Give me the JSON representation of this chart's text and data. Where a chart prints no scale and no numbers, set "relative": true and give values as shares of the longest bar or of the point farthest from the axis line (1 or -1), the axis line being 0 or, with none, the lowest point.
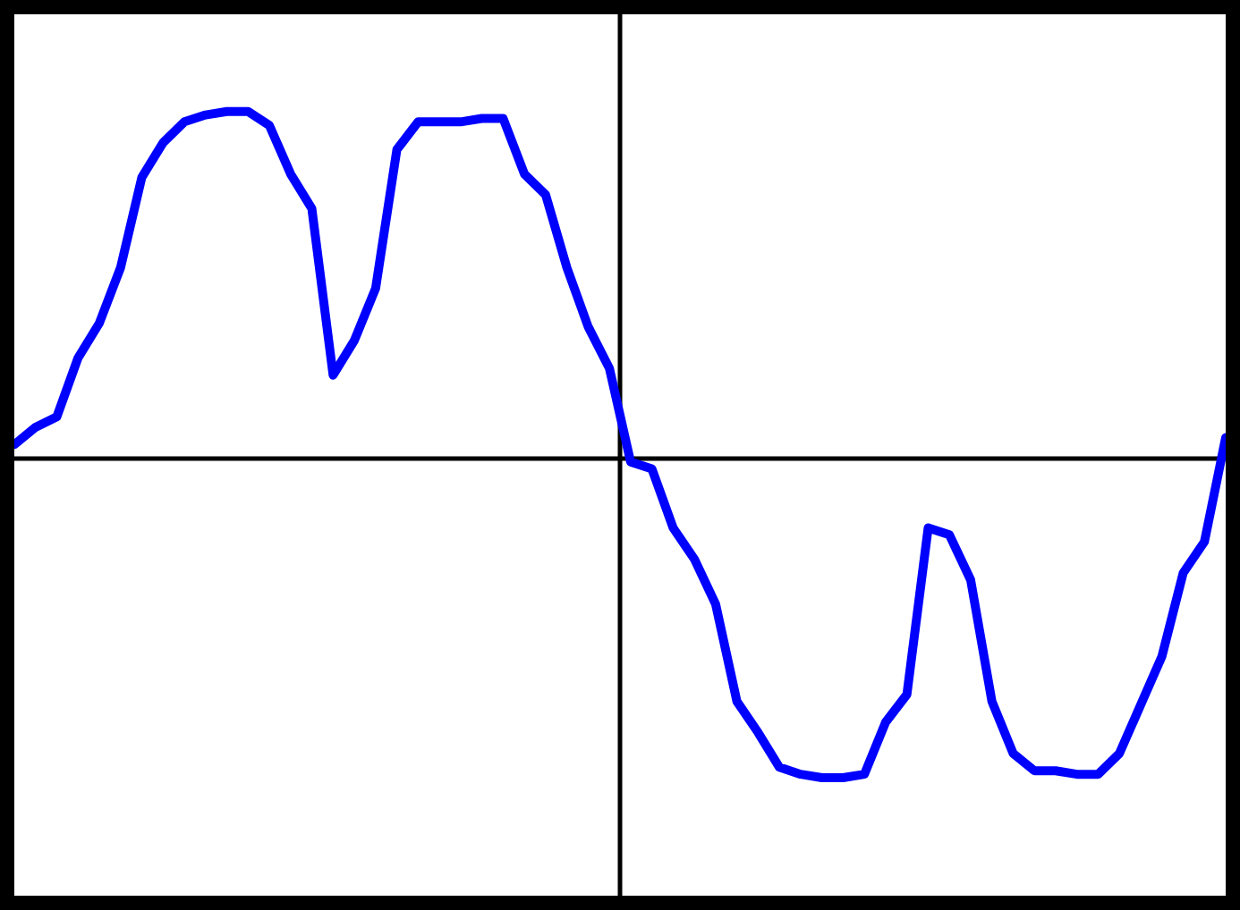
{
  "chart_data": {
    "type": "line",
    "relative": true,
    "categories": [
      null,
      null,
      null,
      null,
      null,
      null,
      null,
      null,
      null,
      null,
      null,
      null,
      null,
      null,
      null,
      null,
      null,
      null,
      null,
      null,
      null,
      null,
      null,
      null,
      null,
      null,
      null,
      null,
      null,
      null,
      null,
      null,
      null,
      null,
      null,
      null,
      null,
      null,
      null,
      null,
      null,
      null,
      null,
      null,
      null,
      null,
      null,
      null,
      null,
      null,
      null,
      null,
      null,
      null,
      null,
      null,
      null,
      null
    ],
    "series": [
      {
        "color": "#0000ff",
        "values": [
          0.04,
          0.09,
          0.12,
          0.29,
          0.39,
          0.55,
          0.81,
          0.91,
          0.97,
          0.99,
          1.0,
          1.0,
          0.96,
          0.82,
          0.72,
          0.24,
          0.34,
          0.49,
          0.89,
          0.97,
          0.97,
          0.97,
          0.98,
          0.98,
          0.82,
          0.76,
          0.55,
          0.38,
          0.26,
          -0.01,
          -0.03,
          -0.2,
          -0.29,
          -0.42,
          -0.7,
          -0.79,
          -0.89,
          -0.91,
          -0.92,
          -0.92,
          -0.91,
          -0.76,
          -0.68,
          -0.2,
          -0.22,
          -0.35,
          -0.7,
          -0.85,
          -0.9,
          -0.9,
          -0.91,
          -0.91,
          -0.85,
          -0.71,
          -0.57,
          -0.33,
          -0.24,
          0.06
        ]
      }
    ],
    "legend": false,
    "marker": "none",
    "line_style": "solid"
  }
}
